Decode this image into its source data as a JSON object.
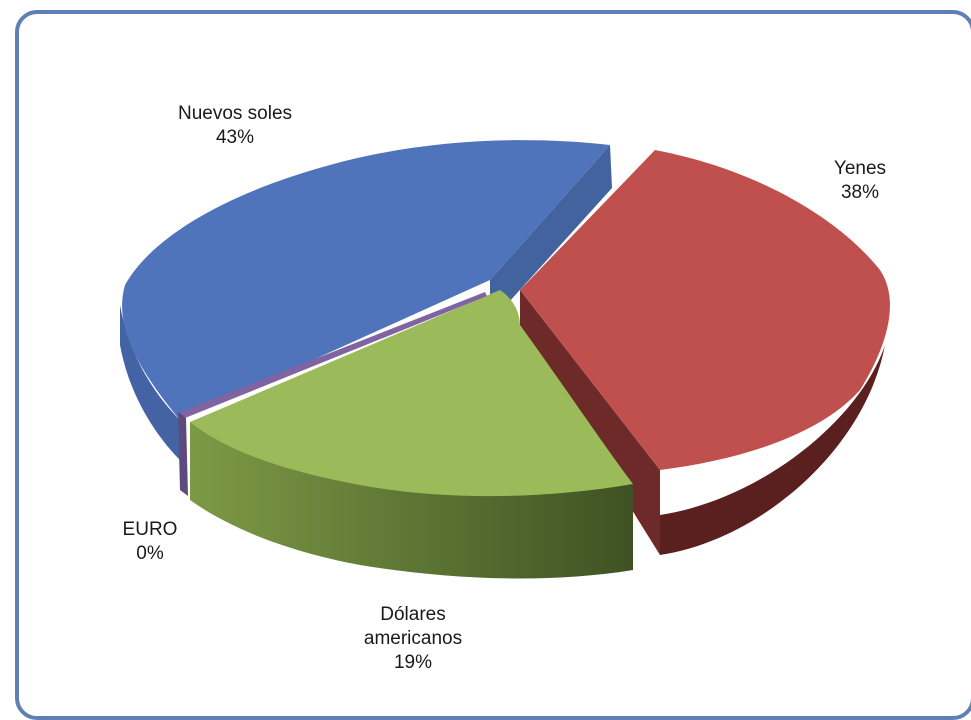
{
  "chart_data": {
    "type": "pie",
    "style": "3d-exploded",
    "title": "",
    "slices": [
      {
        "label": "Nuevos soles",
        "percent_label": "43%",
        "value": 43,
        "color": "#4f74bb"
      },
      {
        "label": "Yenes",
        "percent_label": "38%",
        "value": 38,
        "color": "#bf504d"
      },
      {
        "label": "Dólares americanos",
        "percent_label": "19%",
        "value": 19,
        "color": "#9bbb5a"
      },
      {
        "label": "EURO",
        "percent_label": "0%",
        "value": 0,
        "color": "#8064a2"
      }
    ],
    "legend": "none",
    "data_labels": "outside"
  }
}
